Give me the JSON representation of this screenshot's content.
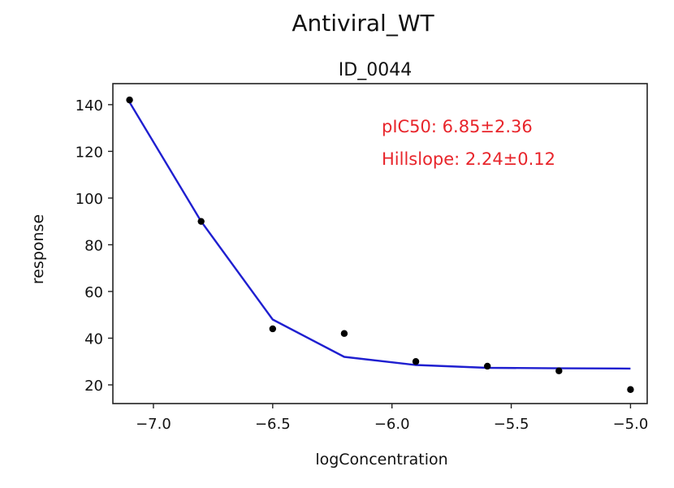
{
  "chart_data": {
    "type": "line",
    "title": "Antiviral_WT",
    "subtitle": "ID_0044",
    "xlabel": "logConcentration",
    "ylabel": "response",
    "xlim": [
      -7.17,
      -4.93
    ],
    "ylim": [
      12,
      149
    ],
    "x_ticks": [
      -7.0,
      -6.5,
      -6.0,
      -5.5,
      -5.0
    ],
    "x_tick_labels": [
      "−7.0",
      "−6.5",
      "−6.0",
      "−5.5",
      "−5.0"
    ],
    "y_ticks": [
      20,
      40,
      60,
      80,
      100,
      120,
      140
    ],
    "y_tick_labels": [
      "20",
      "40",
      "60",
      "80",
      "100",
      "120",
      "140"
    ],
    "grid": false,
    "series": [
      {
        "kind": "scatter",
        "color": "#000000",
        "x": [
          -7.1,
          -6.8,
          -6.5,
          -6.2,
          -5.9,
          -5.6,
          -5.3,
          -5.0
        ],
        "y": [
          142,
          90,
          44,
          42,
          30,
          28,
          26,
          18
        ]
      },
      {
        "kind": "line",
        "color": "#1f1fd0",
        "x": [
          -7.1,
          -6.8,
          -6.5,
          -6.2,
          -5.9,
          -5.6,
          -5.3,
          -5.0
        ],
        "y": [
          141,
          90,
          48,
          32,
          28.5,
          27.3,
          27.1,
          27.0
        ]
      }
    ],
    "annotations": [
      {
        "text": "pIC50: 6.85±2.36",
        "color": "#e8252b"
      },
      {
        "text": "Hillslope: 2.24±0.12",
        "color": "#e8252b"
      }
    ]
  }
}
